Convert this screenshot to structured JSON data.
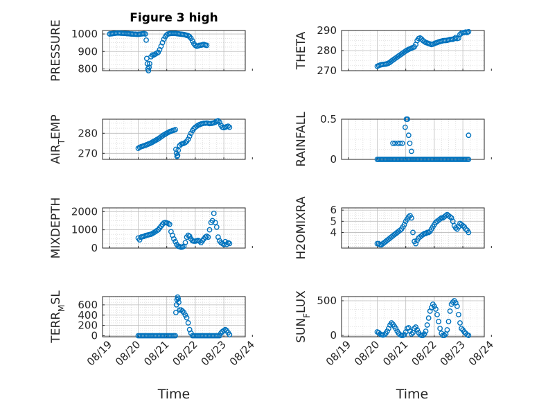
{
  "figure": {
    "title": "Figure 3 high",
    "xlabel": "Time",
    "series_color": "#0072BD",
    "xticks": [
      "08/19",
      "08/20",
      "08/21",
      "08/22",
      "08/23",
      "08/24"
    ]
  },
  "chart_data": [
    {
      "type": "scatter",
      "title": "Figure 3 high",
      "ylabel": "PRESSURE",
      "xlabel": "",
      "xlim": [
        -0.25,
        4.75
      ],
      "ylim": [
        790,
        1020
      ],
      "yticks": [
        800,
        900,
        1000
      ],
      "grid": true,
      "x": [
        0.0,
        0.05,
        0.1,
        0.15,
        0.2,
        0.25,
        0.3,
        0.35,
        0.4,
        0.45,
        0.5,
        0.55,
        0.6,
        0.65,
        0.7,
        0.75,
        0.8,
        0.85,
        0.9,
        0.95,
        1.0,
        1.05,
        1.1,
        1.15,
        1.2,
        1.25,
        1.28,
        1.3,
        1.32,
        1.34,
        1.36,
        1.38,
        1.4,
        1.45,
        1.5,
        1.55,
        1.6,
        1.65,
        1.7,
        1.75,
        1.8,
        1.85,
        1.9,
        1.95,
        2.0,
        2.05,
        2.1,
        2.15,
        2.2,
        2.25,
        2.3,
        2.35,
        2.4,
        2.45,
        2.5,
        2.55,
        2.6,
        2.65,
        2.7,
        2.75,
        2.8,
        2.85,
        2.9,
        2.95,
        3.0,
        3.05,
        3.1,
        3.15,
        3.2,
        3.25,
        3.3,
        3.35,
        3.4
      ],
      "y": [
        1000,
        1001,
        1002,
        1003,
        1004,
        1005,
        1005,
        1005,
        1004,
        1004,
        1003,
        1003,
        1002,
        1002,
        1001,
        1000,
        1000,
        999,
        999,
        998,
        998,
        999,
        1000,
        1001,
        1002,
        1000,
        965,
        860,
        830,
        800,
        790,
        810,
        830,
        870,
        880,
        880,
        885,
        890,
        895,
        910,
        930,
        950,
        970,
        985,
        995,
        1000,
        1002,
        1003,
        1003,
        1003,
        1003,
        1002,
        1001,
        1000,
        999,
        998,
        997,
        995,
        992,
        990,
        985,
        975,
        960,
        945,
        935,
        930,
        932,
        935,
        936,
        938,
        940,
        937,
        935
      ]
    },
    {
      "type": "scatter",
      "ylabel": "THETA",
      "xlabel": "",
      "xlim": [
        -0.25,
        4.75
      ],
      "ylim": [
        270,
        290
      ],
      "yticks": [
        270,
        280,
        290
      ],
      "grid": true,
      "x": [
        1.0,
        1.05,
        1.1,
        1.15,
        1.2,
        1.25,
        1.3,
        1.35,
        1.4,
        1.45,
        1.5,
        1.55,
        1.6,
        1.65,
        1.7,
        1.75,
        1.8,
        1.85,
        1.9,
        1.95,
        2.0,
        2.05,
        2.1,
        2.15,
        2.2,
        2.25,
        2.3,
        2.35,
        2.4,
        2.45,
        2.5,
        2.55,
        2.6,
        2.65,
        2.7,
        2.75,
        2.8,
        2.85,
        2.9,
        2.95,
        3.0,
        3.05,
        3.1,
        3.15,
        3.2,
        3.25,
        3.3,
        3.35,
        3.4,
        3.45,
        3.5,
        3.55,
        3.6,
        3.65,
        3.7,
        3.75,
        3.8,
        3.85,
        3.9,
        3.95,
        4.0,
        4.05,
        4.1,
        4.15,
        4.2
      ],
      "y": [
        272.2,
        272.5,
        272.8,
        273.0,
        273.1,
        273.2,
        273.3,
        273.5,
        273.8,
        274.2,
        274.8,
        275.3,
        275.8,
        276.3,
        276.8,
        277.3,
        277.8,
        278.3,
        278.8,
        279.3,
        279.8,
        280.2,
        280.6,
        280.9,
        281.2,
        281.5,
        281.8,
        283.0,
        285.0,
        286.0,
        286.3,
        285.8,
        285.0,
        284.5,
        284.0,
        283.8,
        283.5,
        283.3,
        283.0,
        283.2,
        283.5,
        283.8,
        284.0,
        284.3,
        284.5,
        284.7,
        284.9,
        285.0,
        285.0,
        285.1,
        285.3,
        285.5,
        285.6,
        285.6,
        286.0,
        286.5,
        286.0,
        286.2,
        288.0,
        288.6,
        288.9,
        289.0,
        289.2,
        289.0,
        289.4
      ]
    },
    {
      "type": "scatter",
      "ylabel": "AIR_TEMP",
      "xlabel": "",
      "xlim": [
        -0.25,
        4.75
      ],
      "ylim": [
        267,
        287
      ],
      "yticks": [
        270,
        280
      ],
      "grid": true,
      "x": [
        1.0,
        1.05,
        1.1,
        1.15,
        1.2,
        1.25,
        1.3,
        1.35,
        1.4,
        1.45,
        1.5,
        1.55,
        1.6,
        1.65,
        1.7,
        1.75,
        1.8,
        1.85,
        1.9,
        1.95,
        2.0,
        2.05,
        2.1,
        2.15,
        2.2,
        2.25,
        2.3,
        2.32,
        2.34,
        2.36,
        2.38,
        2.4,
        2.45,
        2.5,
        2.55,
        2.6,
        2.65,
        2.7,
        2.75,
        2.8,
        2.85,
        2.9,
        2.95,
        3.0,
        3.05,
        3.1,
        3.15,
        3.2,
        3.25,
        3.3,
        3.35,
        3.4,
        3.45,
        3.5,
        3.55,
        3.6,
        3.65,
        3.7,
        3.75,
        3.8,
        3.85,
        3.9,
        3.95,
        4.0,
        4.05,
        4.1,
        4.15,
        4.2
      ],
      "y": [
        272.5,
        273.0,
        273.3,
        273.5,
        273.8,
        274.0,
        274.3,
        274.6,
        274.9,
        275.2,
        275.6,
        276.0,
        276.4,
        276.8,
        277.2,
        277.7,
        278.2,
        278.7,
        279.2,
        279.6,
        280.0,
        280.4,
        280.8,
        281.0,
        281.3,
        281.5,
        281.8,
        272.0,
        270.0,
        268.5,
        269.0,
        271.5,
        273.8,
        274.5,
        274.8,
        275.0,
        275.4,
        276.0,
        277.0,
        278.5,
        280.0,
        281.3,
        282.3,
        283.0,
        283.5,
        284.0,
        284.3,
        284.6,
        284.8,
        285.0,
        285.0,
        285.1,
        285.0,
        284.8,
        284.9,
        285.0,
        285.2,
        285.5,
        286.0,
        286.2,
        285.5,
        284.0,
        283.0,
        282.8,
        283.0,
        283.3,
        283.5,
        283.0
      ]
    },
    {
      "type": "scatter",
      "ylabel": "RAINFALL",
      "xlabel": "",
      "xlim": [
        -0.25,
        4.75
      ],
      "ylim": [
        0,
        0.5
      ],
      "yticks": [
        0,
        0.5
      ],
      "grid": true,
      "x": [
        1.0,
        1.05,
        1.1,
        1.15,
        1.2,
        1.25,
        1.3,
        1.35,
        1.4,
        1.45,
        1.5,
        1.55,
        1.6,
        1.65,
        1.7,
        1.75,
        1.8,
        1.85,
        1.9,
        1.95,
        2.0,
        2.05,
        2.1,
        2.15,
        2.2,
        2.25,
        2.3,
        2.35,
        2.4,
        2.45,
        2.5,
        2.55,
        2.6,
        2.65,
        2.7,
        2.75,
        2.8,
        2.85,
        2.9,
        2.95,
        3.0,
        3.05,
        3.1,
        3.15,
        3.2,
        3.25,
        3.3,
        3.35,
        3.4,
        3.45,
        3.5,
        3.55,
        3.6,
        3.65,
        3.7,
        3.75,
        3.8,
        3.85,
        3.9,
        3.95,
        4.0,
        4.05,
        4.1,
        4.15,
        4.2,
        1.55,
        1.62,
        1.72,
        1.8,
        1.88,
        1.98,
        2.02,
        2.06,
        2.1,
        2.14,
        2.2,
        4.2
      ],
      "y": [
        0,
        0,
        0,
        0,
        0,
        0,
        0,
        0,
        0,
        0,
        0,
        0,
        0,
        0,
        0,
        0,
        0,
        0,
        0,
        0,
        0,
        0,
        0,
        0,
        0,
        0,
        0,
        0,
        0,
        0,
        0,
        0,
        0,
        0,
        0,
        0,
        0,
        0,
        0,
        0,
        0,
        0,
        0,
        0,
        0,
        0,
        0,
        0,
        0,
        0,
        0,
        0,
        0,
        0,
        0,
        0,
        0,
        0,
        0,
        0,
        0,
        0,
        0,
        0,
        0,
        0.2,
        0.2,
        0.2,
        0.2,
        0.2,
        0.4,
        0.5,
        0.5,
        0.3,
        0.2,
        0.1,
        0.3
      ]
    },
    {
      "type": "scatter",
      "ylabel": "MIXDEPTH",
      "xlabel": "",
      "xlim": [
        -0.25,
        4.75
      ],
      "ylim": [
        0,
        2200
      ],
      "yticks": [
        0,
        1000,
        2000
      ],
      "grid": true,
      "x": [
        1.0,
        1.05,
        1.1,
        1.15,
        1.2,
        1.25,
        1.3,
        1.35,
        1.4,
        1.45,
        1.5,
        1.55,
        1.6,
        1.65,
        1.7,
        1.75,
        1.8,
        1.85,
        1.9,
        1.95,
        2.0,
        2.05,
        2.1,
        2.15,
        2.2,
        2.25,
        2.3,
        2.35,
        2.4,
        2.45,
        2.5,
        2.55,
        2.6,
        2.65,
        2.7,
        2.75,
        2.8,
        2.85,
        2.9,
        2.95,
        3.0,
        3.05,
        3.1,
        3.15,
        3.2,
        3.25,
        3.3,
        3.35,
        3.4,
        3.45,
        3.5,
        3.55,
        3.6,
        3.65,
        3.7,
        3.75,
        3.8,
        3.85,
        3.9,
        3.95,
        4.0,
        4.05,
        4.1,
        4.15,
        4.2
      ],
      "y": [
        550,
        450,
        600,
        620,
        640,
        680,
        700,
        720,
        740,
        760,
        800,
        850,
        900,
        950,
        1000,
        1100,
        1200,
        1300,
        1380,
        1400,
        1380,
        1350,
        1300,
        900,
        700,
        500,
        350,
        200,
        100,
        80,
        50,
        60,
        100,
        300,
        600,
        700,
        650,
        500,
        400,
        380,
        380,
        400,
        420,
        380,
        300,
        400,
        500,
        600,
        650,
        600,
        1000,
        1400,
        1500,
        1900,
        1400,
        1150,
        600,
        400,
        300,
        250,
        200,
        350,
        200,
        300,
        250
      ]
    },
    {
      "type": "scatter",
      "ylabel": "H2OMIXRA",
      "xlabel": "",
      "xlim": [
        -0.25,
        4.75
      ],
      "ylim": [
        2.6,
        6.2
      ],
      "yticks": [
        4,
        5,
        6
      ],
      "grid": true,
      "x": [
        1.0,
        1.05,
        1.1,
        1.15,
        1.2,
        1.25,
        1.3,
        1.35,
        1.4,
        1.45,
        1.5,
        1.55,
        1.6,
        1.65,
        1.7,
        1.75,
        1.8,
        1.85,
        1.9,
        1.95,
        2.0,
        2.05,
        2.1,
        2.15,
        2.2,
        2.25,
        2.3,
        2.35,
        2.4,
        2.45,
        2.5,
        2.55,
        2.6,
        2.65,
        2.7,
        2.75,
        2.8,
        2.85,
        2.9,
        2.95,
        3.0,
        3.05,
        3.1,
        3.15,
        3.2,
        3.25,
        3.3,
        3.35,
        3.4,
        3.45,
        3.5,
        3.55,
        3.6,
        3.65,
        3.7,
        3.75,
        3.8,
        3.85,
        3.9,
        3.95,
        4.0,
        4.05,
        4.1,
        4.15,
        4.2
      ],
      "y": [
        3.0,
        3.0,
        2.9,
        2.9,
        3.0,
        3.1,
        3.2,
        3.3,
        3.4,
        3.5,
        3.6,
        3.7,
        3.8,
        3.9,
        4.0,
        4.1,
        4.2,
        4.3,
        4.5,
        4.7,
        5.0,
        5.2,
        5.4,
        5.5,
        5.3,
        4.0,
        3.2,
        3.0,
        3.3,
        3.5,
        3.6,
        3.7,
        3.8,
        3.9,
        3.9,
        4.0,
        4.0,
        4.1,
        4.3,
        4.5,
        4.7,
        4.9,
        5.0,
        5.1,
        5.2,
        5.3,
        5.3,
        5.4,
        5.5,
        5.6,
        5.5,
        5.4,
        5.3,
        5.0,
        4.6,
        4.4,
        4.3,
        4.5,
        4.8,
        4.7,
        4.6,
        4.5,
        4.3,
        4.2,
        4.0
      ]
    },
    {
      "type": "scatter",
      "ylabel": "TERR_MSL",
      "xlabel": "",
      "xlim": [
        -0.25,
        4.75
      ],
      "ylim": [
        -20,
        760
      ],
      "yticks": [
        0,
        200,
        400,
        600
      ],
      "grid": true,
      "x": [
        1.0,
        1.05,
        1.1,
        1.15,
        1.2,
        1.25,
        1.3,
        1.35,
        1.4,
        1.45,
        1.5,
        1.55,
        1.6,
        1.65,
        1.7,
        1.75,
        1.8,
        1.85,
        1.9,
        1.95,
        2.0,
        2.05,
        2.1,
        2.15,
        2.2,
        2.25,
        2.3,
        2.32,
        2.34,
        2.36,
        2.38,
        2.4,
        2.42,
        2.45,
        2.5,
        2.55,
        2.6,
        2.65,
        2.7,
        2.75,
        2.8,
        2.85,
        2.9,
        2.95,
        3.0,
        3.05,
        3.1,
        3.15,
        3.2,
        3.25,
        3.3,
        3.35,
        3.4,
        3.45,
        3.5,
        3.55,
        3.6,
        3.65,
        3.7,
        3.75,
        3.8,
        3.85,
        3.9,
        3.95,
        4.0,
        4.05,
        4.1,
        4.15,
        4.2
      ],
      "y": [
        0,
        0,
        0,
        0,
        0,
        0,
        0,
        0,
        0,
        0,
        0,
        0,
        0,
        0,
        0,
        0,
        0,
        0,
        0,
        0,
        0,
        0,
        0,
        0,
        0,
        0,
        0,
        450,
        600,
        700,
        750,
        720,
        650,
        500,
        500,
        480,
        450,
        400,
        350,
        250,
        120,
        50,
        0,
        0,
        0,
        0,
        0,
        0,
        0,
        0,
        0,
        0,
        0,
        0,
        0,
        0,
        0,
        0,
        0,
        0,
        0,
        0,
        50,
        80,
        100,
        120,
        100,
        60,
        20
      ]
    },
    {
      "type": "scatter",
      "ylabel": "SUN_FLUX",
      "xlabel": "",
      "xlim": [
        -0.25,
        4.75
      ],
      "ylim": [
        -20,
        560
      ],
      "yticks": [
        0,
        500
      ],
      "grid": true,
      "x": [
        1.0,
        1.05,
        1.1,
        1.15,
        1.2,
        1.25,
        1.3,
        1.35,
        1.4,
        1.45,
        1.5,
        1.55,
        1.6,
        1.65,
        1.7,
        1.75,
        1.8,
        1.85,
        1.9,
        1.95,
        2.0,
        2.05,
        2.1,
        2.15,
        2.2,
        2.25,
        2.3,
        2.35,
        2.4,
        2.45,
        2.5,
        2.55,
        2.6,
        2.65,
        2.7,
        2.75,
        2.8,
        2.85,
        2.9,
        2.95,
        3.0,
        3.05,
        3.1,
        3.15,
        3.2,
        3.25,
        3.3,
        3.35,
        3.4,
        3.45,
        3.5,
        3.55,
        3.6,
        3.65,
        3.7,
        3.75,
        3.8,
        3.85,
        3.9,
        3.95,
        4.0,
        4.05,
        4.1,
        4.15,
        4.2
      ],
      "y": [
        50,
        40,
        20,
        10,
        5,
        10,
        30,
        60,
        100,
        150,
        180,
        160,
        130,
        100,
        60,
        30,
        10,
        0,
        0,
        10,
        50,
        100,
        110,
        60,
        20,
        40,
        100,
        120,
        80,
        40,
        10,
        0,
        0,
        20,
        60,
        150,
        250,
        350,
        400,
        450,
        420,
        380,
        300,
        200,
        100,
        30,
        0,
        0,
        20,
        80,
        200,
        350,
        450,
        480,
        500,
        470,
        420,
        300,
        180,
        100,
        80,
        50,
        30,
        10,
        0
      ]
    }
  ]
}
